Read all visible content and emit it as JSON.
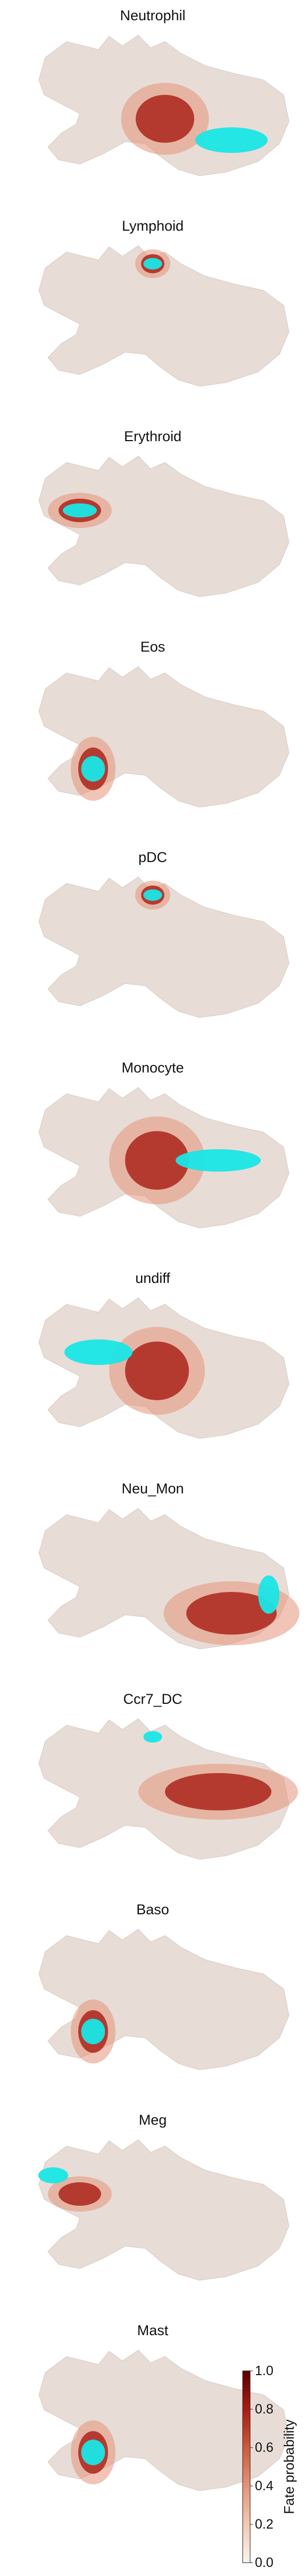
{
  "chart_data": {
    "type": "scatter",
    "panels": [
      {
        "title": "Neutrophil",
        "cyan_region": "lower-right",
        "hot_region": "center-right"
      },
      {
        "title": "Lymphoid",
        "cyan_region": "top-center",
        "hot_region": "top-center"
      },
      {
        "title": "Erythroid",
        "cyan_region": "left",
        "hot_region": "left"
      },
      {
        "title": "Eos",
        "cyan_region": "lower-left",
        "hot_region": "lower-left"
      },
      {
        "title": "pDC",
        "cyan_region": "top-center",
        "hot_region": "top-center"
      },
      {
        "title": "Monocyte",
        "cyan_region": "right",
        "hot_region": "center"
      },
      {
        "title": "undiff",
        "cyan_region": "left-center",
        "hot_region": "center"
      },
      {
        "title": "Neu_Mon",
        "cyan_region": "right-edge",
        "hot_region": "lower-right"
      },
      {
        "title": "Ccr7_DC",
        "cyan_region": "top-center",
        "hot_region": "right"
      },
      {
        "title": "Baso",
        "cyan_region": "lower-left",
        "hot_region": "lower-left"
      },
      {
        "title": "Meg",
        "cyan_region": "far-left",
        "hot_region": "left"
      },
      {
        "title": "Mast",
        "cyan_region": "lower-left",
        "hot_region": "lower-left"
      }
    ],
    "colorbar": {
      "label": "Fate probability",
      "ticks": [
        "0.0",
        "0.2",
        "0.4",
        "0.6",
        "0.8",
        "1.0"
      ],
      "range": [
        0,
        1
      ],
      "colors": [
        "#fbf3ee",
        "#f2c9b3",
        "#e4947a",
        "#cc5a40",
        "#a81c12",
        "#5c0000"
      ]
    },
    "colors": {
      "background_cells": "#e8dcd6",
      "terminal_cells": "#19e6e6",
      "grid": false
    }
  }
}
